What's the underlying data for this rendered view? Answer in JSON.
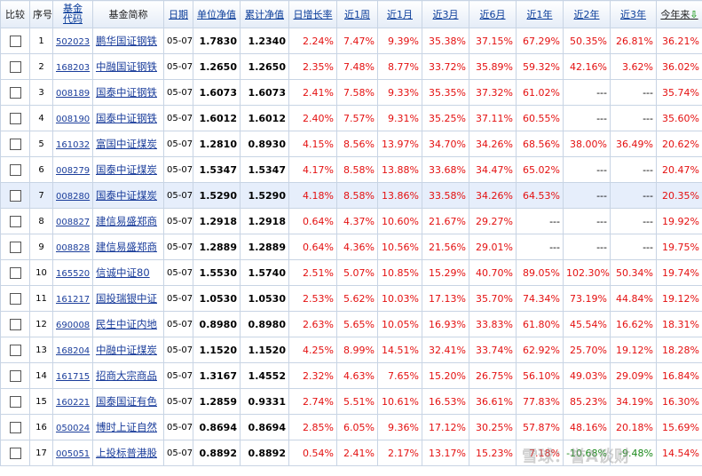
{
  "headers": {
    "compare": "比较",
    "index": "序号",
    "code_line1": "基金",
    "code_line2": "代码",
    "name": "基金简称",
    "date": "日期",
    "nav": "单位净值",
    "acc_nav": "累计净值",
    "daily": "日增长率",
    "w1": "近1周",
    "m1": "近1月",
    "m3": "近3月",
    "m6": "近6月",
    "y1": "近1年",
    "y2": "近2年",
    "y3": "近3年",
    "ytd": "今年来",
    "ytd_arrow": "⇩"
  },
  "rows": [
    {
      "idx": "1",
      "code": "502023",
      "name": "鹏华国证钢铁",
      "date": "05-07",
      "nav": "1.7830",
      "acc": "1.2340",
      "daily": "2.24%",
      "w1": "7.47%",
      "m1": "9.39%",
      "m3": "35.38%",
      "m6": "37.15%",
      "y1": "67.29%",
      "y2": "50.35%",
      "y3": "26.81%",
      "ytd": "36.21%"
    },
    {
      "idx": "2",
      "code": "168203",
      "name": "中融国证钢铁",
      "date": "05-07",
      "nav": "1.2650",
      "acc": "1.2650",
      "daily": "2.35%",
      "w1": "7.48%",
      "m1": "8.77%",
      "m3": "33.72%",
      "m6": "35.89%",
      "y1": "59.32%",
      "y2": "42.16%",
      "y3": "3.62%",
      "ytd": "36.02%"
    },
    {
      "idx": "3",
      "code": "008189",
      "name": "国泰中证钢铁",
      "date": "05-07",
      "nav": "1.6073",
      "acc": "1.6073",
      "daily": "2.41%",
      "w1": "7.58%",
      "m1": "9.33%",
      "m3": "35.35%",
      "m6": "37.32%",
      "y1": "61.02%",
      "y2": "---",
      "y3": "---",
      "ytd": "35.74%"
    },
    {
      "idx": "4",
      "code": "008190",
      "name": "国泰中证钢铁",
      "date": "05-07",
      "nav": "1.6012",
      "acc": "1.6012",
      "daily": "2.40%",
      "w1": "7.57%",
      "m1": "9.31%",
      "m3": "35.25%",
      "m6": "37.11%",
      "y1": "60.55%",
      "y2": "---",
      "y3": "---",
      "ytd": "35.60%"
    },
    {
      "idx": "5",
      "code": "161032",
      "name": "富国中证煤炭",
      "date": "05-07",
      "nav": "1.2810",
      "acc": "0.8930",
      "daily": "4.15%",
      "w1": "8.56%",
      "m1": "13.97%",
      "m3": "34.70%",
      "m6": "34.26%",
      "y1": "68.56%",
      "y2": "38.00%",
      "y3": "36.49%",
      "ytd": "20.62%"
    },
    {
      "idx": "6",
      "code": "008279",
      "name": "国泰中证煤炭",
      "date": "05-07",
      "nav": "1.5347",
      "acc": "1.5347",
      "daily": "4.17%",
      "w1": "8.58%",
      "m1": "13.88%",
      "m3": "33.68%",
      "m6": "34.47%",
      "y1": "65.02%",
      "y2": "---",
      "y3": "---",
      "ytd": "20.47%"
    },
    {
      "idx": "7",
      "code": "008280",
      "name": "国泰中证煤炭",
      "date": "05-07",
      "nav": "1.5290",
      "acc": "1.5290",
      "daily": "4.18%",
      "w1": "8.58%",
      "m1": "13.86%",
      "m3": "33.58%",
      "m6": "34.26%",
      "y1": "64.53%",
      "y2": "---",
      "y3": "---",
      "ytd": "20.35%",
      "highlight": true
    },
    {
      "idx": "8",
      "code": "008827",
      "name": "建信易盛郑商",
      "date": "05-07",
      "nav": "1.2918",
      "acc": "1.2918",
      "daily": "0.64%",
      "w1": "4.37%",
      "m1": "10.60%",
      "m3": "21.67%",
      "m6": "29.27%",
      "y1": "---",
      "y2": "---",
      "y3": "---",
      "ytd": "19.92%"
    },
    {
      "idx": "9",
      "code": "008828",
      "name": "建信易盛郑商",
      "date": "05-07",
      "nav": "1.2889",
      "acc": "1.2889",
      "daily": "0.64%",
      "w1": "4.36%",
      "m1": "10.56%",
      "m3": "21.56%",
      "m6": "29.01%",
      "y1": "---",
      "y2": "---",
      "y3": "---",
      "ytd": "19.75%"
    },
    {
      "idx": "10",
      "code": "165520",
      "name": "信诚中证80",
      "date": "05-07",
      "nav": "1.5530",
      "acc": "1.5740",
      "daily": "2.51%",
      "w1": "5.07%",
      "m1": "10.85%",
      "m3": "15.29%",
      "m6": "40.70%",
      "y1": "89.05%",
      "y2": "102.30%",
      "y3": "50.34%",
      "ytd": "19.74%"
    },
    {
      "idx": "11",
      "code": "161217",
      "name": "国投瑞银中证",
      "date": "05-07",
      "nav": "1.0530",
      "acc": "1.0530",
      "daily": "2.53%",
      "w1": "5.62%",
      "m1": "10.03%",
      "m3": "17.13%",
      "m6": "35.70%",
      "y1": "74.34%",
      "y2": "73.19%",
      "y3": "44.84%",
      "ytd": "19.12%"
    },
    {
      "idx": "12",
      "code": "690008",
      "name": "民生中证内地",
      "date": "05-07",
      "nav": "0.8980",
      "acc": "0.8980",
      "daily": "2.63%",
      "w1": "5.65%",
      "m1": "10.05%",
      "m3": "16.93%",
      "m6": "33.83%",
      "y1": "61.80%",
      "y2": "45.54%",
      "y3": "16.62%",
      "ytd": "18.31%"
    },
    {
      "idx": "13",
      "code": "168204",
      "name": "中融中证煤炭",
      "date": "05-07",
      "nav": "1.1520",
      "acc": "1.1520",
      "daily": "4.25%",
      "w1": "8.99%",
      "m1": "14.51%",
      "m3": "32.41%",
      "m6": "33.74%",
      "y1": "62.92%",
      "y2": "25.70%",
      "y3": "19.12%",
      "ytd": "18.28%"
    },
    {
      "idx": "14",
      "code": "161715",
      "name": "招商大宗商品",
      "date": "05-07",
      "nav": "1.3167",
      "acc": "1.4552",
      "daily": "2.32%",
      "w1": "4.63%",
      "m1": "7.65%",
      "m3": "15.20%",
      "m6": "26.75%",
      "y1": "56.10%",
      "y2": "49.03%",
      "y3": "29.09%",
      "ytd": "16.84%"
    },
    {
      "idx": "15",
      "code": "160221",
      "name": "国泰国证有色",
      "date": "05-07",
      "nav": "1.2859",
      "acc": "0.9331",
      "daily": "2.74%",
      "w1": "5.51%",
      "m1": "10.61%",
      "m3": "16.53%",
      "m6": "36.61%",
      "y1": "77.83%",
      "y2": "85.23%",
      "y3": "34.19%",
      "ytd": "16.30%"
    },
    {
      "idx": "16",
      "code": "050024",
      "name": "博时上证自然",
      "date": "05-07",
      "nav": "0.8694",
      "acc": "0.8694",
      "daily": "2.85%",
      "w1": "6.05%",
      "m1": "9.36%",
      "m3": "17.12%",
      "m6": "30.25%",
      "y1": "57.87%",
      "y2": "48.16%",
      "y3": "20.18%",
      "ytd": "15.69%"
    },
    {
      "idx": "17",
      "code": "005051",
      "name": "上投标普港股",
      "date": "05-07",
      "nav": "0.8892",
      "acc": "0.8892",
      "daily": "0.54%",
      "w1": "2.41%",
      "m1": "2.17%",
      "m3": "13.17%",
      "m6": "15.23%",
      "y1": "7.18%",
      "y2": "-10.68%",
      "y3": "-9.48%",
      "ytd": "14.54%"
    }
  ],
  "watermark": "雪球：誉A谈财",
  "colors": {
    "up": "#e41010",
    "down": "#1c8a1c",
    "link": "#1a3d9b",
    "highlight": "#e6eefb",
    "border": "#c8d4e4"
  }
}
